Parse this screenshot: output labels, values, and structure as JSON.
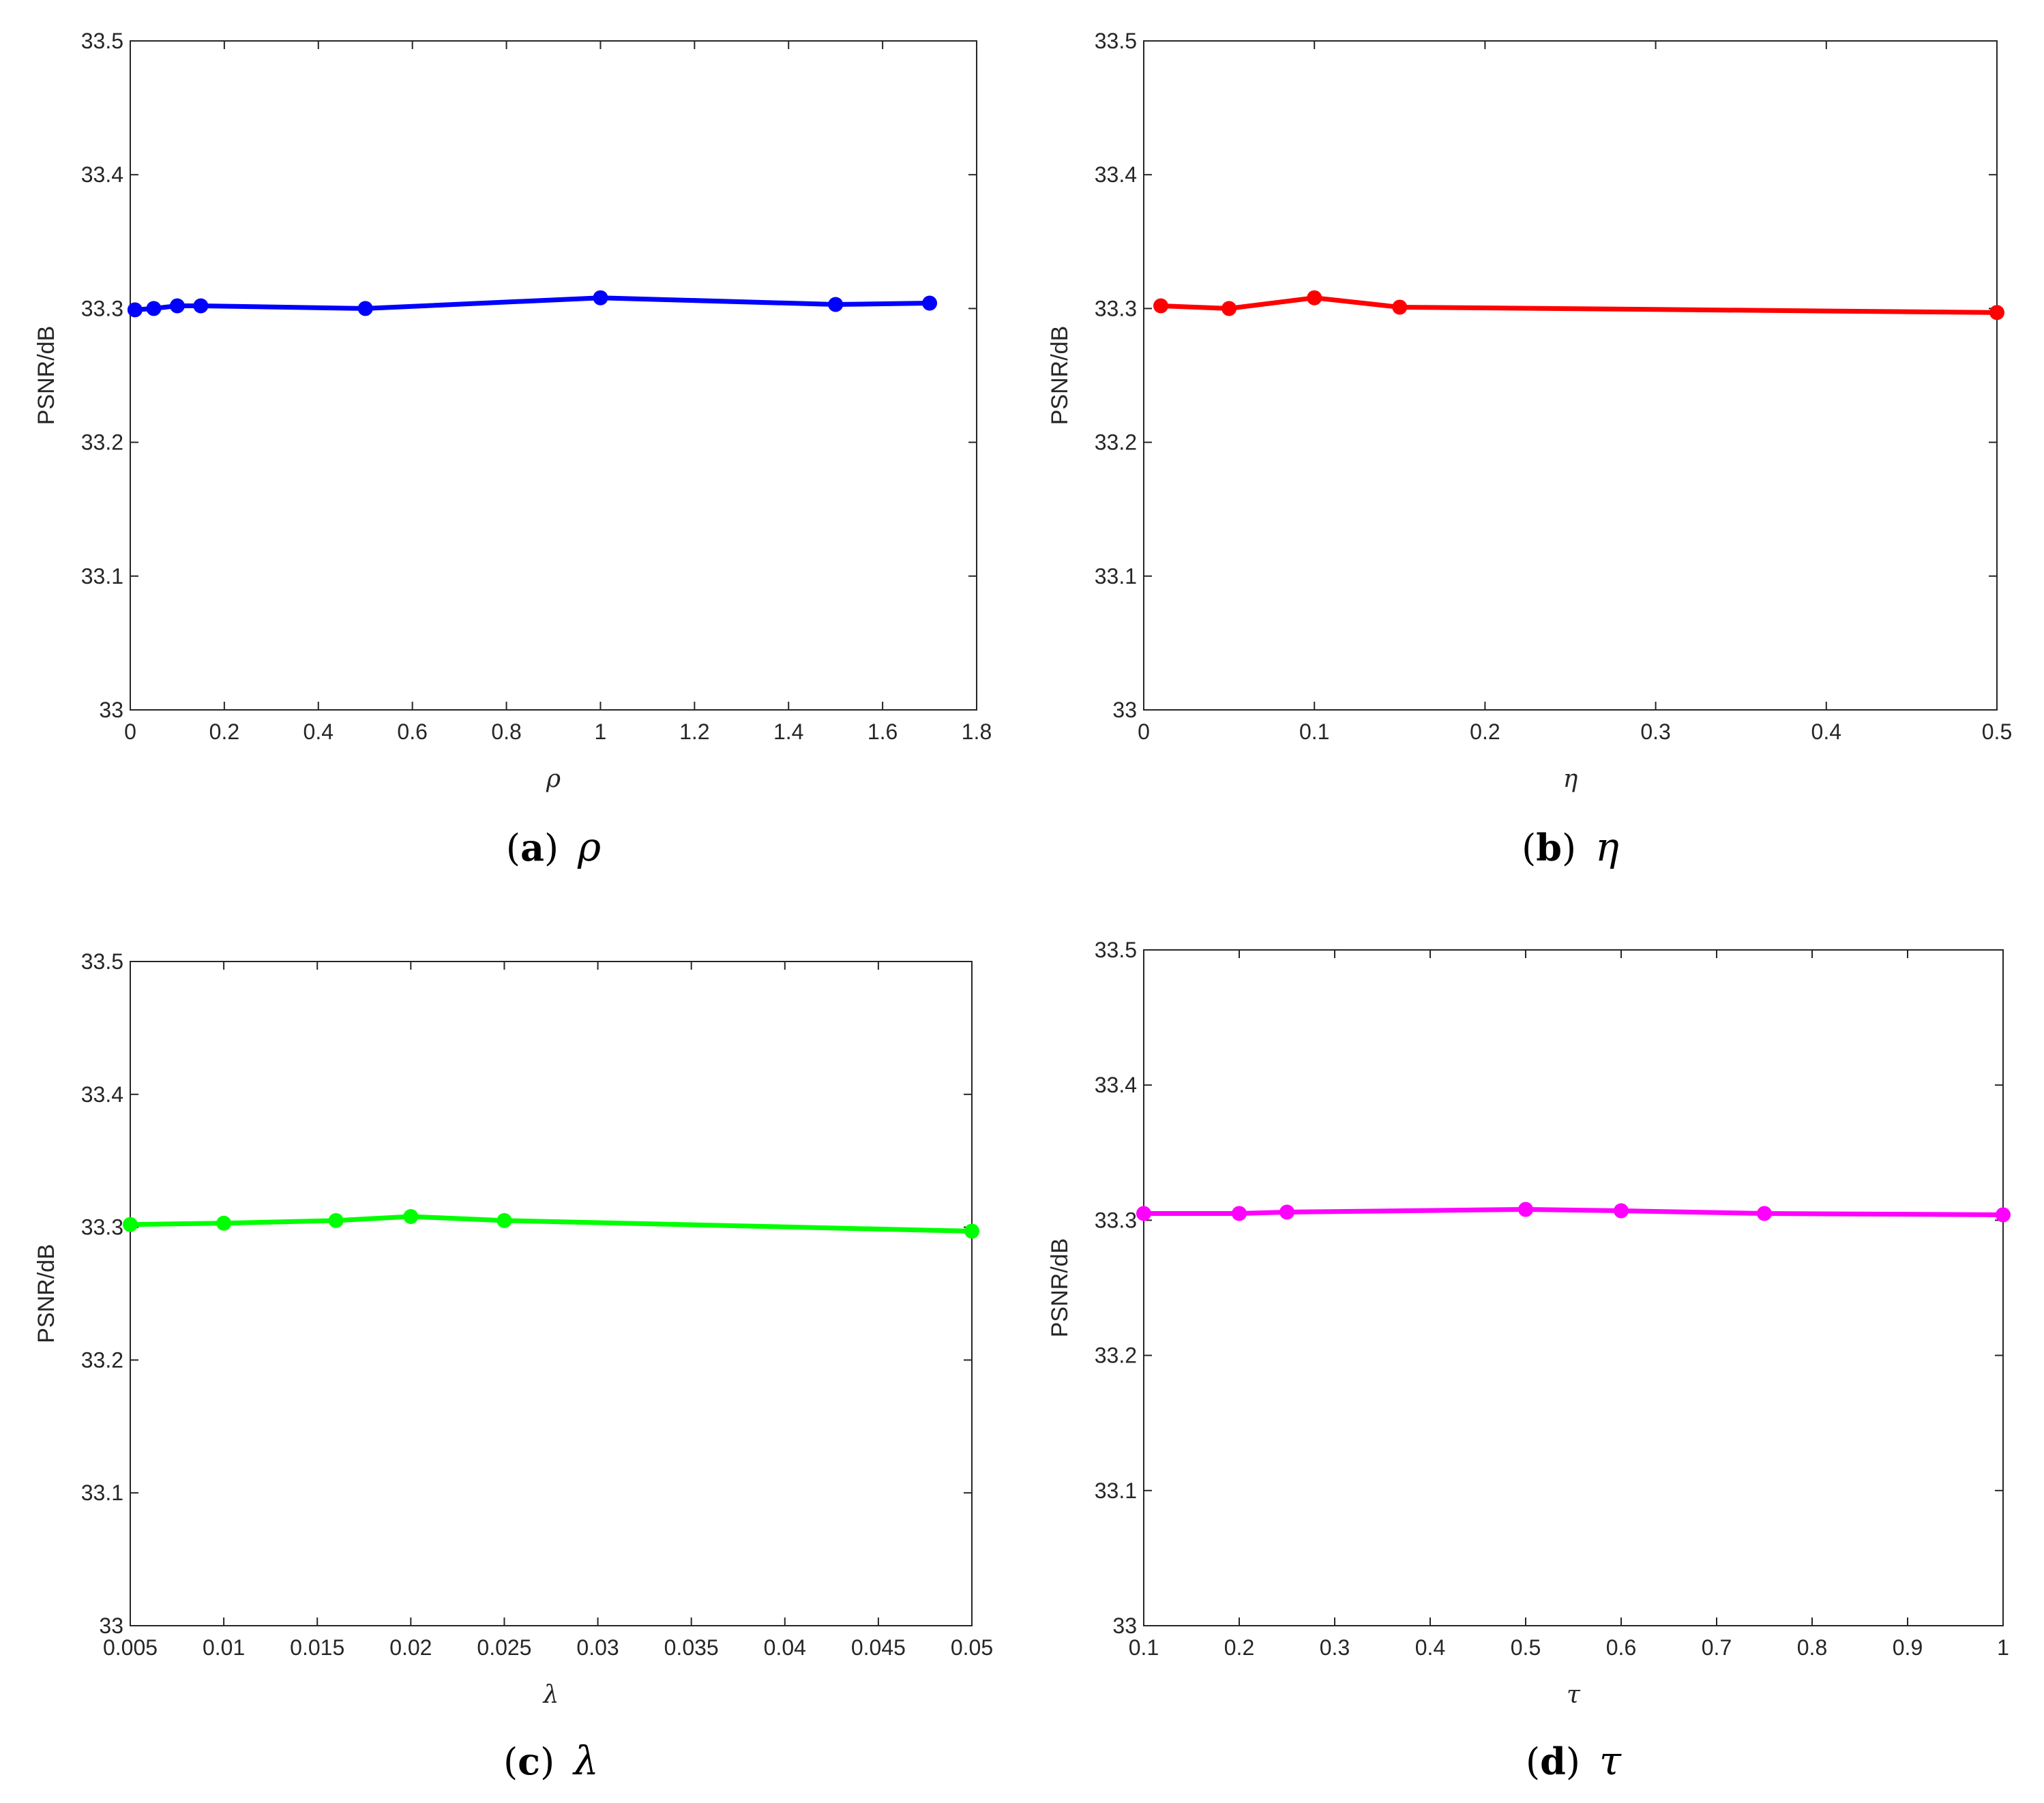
{
  "chart_data": [
    {
      "type": "line",
      "caption": {
        "letter": "a",
        "symbol": "ρ"
      },
      "xlabel": "ρ",
      "ylabel": "PSNR/dB",
      "color": "#0000ff",
      "xlim": [
        0,
        1.8
      ],
      "ylim": [
        33,
        33.5
      ],
      "xticks": [
        0,
        0.2,
        0.4,
        0.6,
        0.8,
        1,
        1.2,
        1.4,
        1.6,
        1.8
      ],
      "xtick_labels": [
        "0",
        "0.2",
        "0.4",
        "0.6",
        "0.8",
        "1",
        "1.2",
        "1.4",
        "1.6",
        "1.8"
      ],
      "yticks": [
        33,
        33.1,
        33.2,
        33.3,
        33.4,
        33.5
      ],
      "ytick_labels": [
        "33",
        "33.1",
        "33.2",
        "33.3",
        "33.4",
        "33.5"
      ],
      "x": [
        0.01,
        0.05,
        0.1,
        0.15,
        0.5,
        1,
        1.5,
        1.7
      ],
      "y": [
        33.299,
        33.3,
        33.302,
        33.302,
        33.3,
        33.308,
        33.303,
        33.304
      ]
    },
    {
      "type": "line",
      "caption": {
        "letter": "b",
        "symbol": "η"
      },
      "xlabel": "η",
      "ylabel": "PSNR/dB",
      "color": "#ff0000",
      "xlim": [
        0,
        0.5
      ],
      "ylim": [
        33,
        33.5
      ],
      "xticks": [
        0,
        0.1,
        0.2,
        0.3,
        0.4,
        0.5
      ],
      "xtick_labels": [
        "0",
        "0.1",
        "0.2",
        "0.3",
        "0.4",
        "0.5"
      ],
      "yticks": [
        33,
        33.1,
        33.2,
        33.3,
        33.4,
        33.5
      ],
      "ytick_labels": [
        "33",
        "33.1",
        "33.2",
        "33.3",
        "33.4",
        "33.5"
      ],
      "x": [
        0.01,
        0.05,
        0.1,
        0.15,
        0.5
      ],
      "y": [
        33.302,
        33.3,
        33.308,
        33.301,
        33.297
      ]
    },
    {
      "type": "line",
      "caption": {
        "letter": "c",
        "symbol": "λ"
      },
      "xlabel": "λ",
      "ylabel": "PSNR/dB",
      "color": "#00ff00",
      "xlim": [
        0.005,
        0.05
      ],
      "ylim": [
        33,
        33.5
      ],
      "xticks": [
        0.005,
        0.01,
        0.015,
        0.02,
        0.025,
        0.03,
        0.035,
        0.04,
        0.045,
        0.05
      ],
      "xtick_labels": [
        "0.005",
        "0.01",
        "0.015",
        "0.02",
        "0.025",
        "0.03",
        "0.035",
        "0.04",
        "0.045",
        "0.05"
      ],
      "yticks": [
        33,
        33.1,
        33.2,
        33.3,
        33.4,
        33.5
      ],
      "ytick_labels": [
        "33",
        "33.1",
        "33.2",
        "33.3",
        "33.4",
        "33.5"
      ],
      "x": [
        0.005,
        0.01,
        0.016,
        0.02,
        0.025,
        0.05
      ],
      "y": [
        33.302,
        33.303,
        33.305,
        33.308,
        33.305,
        33.297
      ]
    },
    {
      "type": "line",
      "caption": {
        "letter": "d",
        "symbol": "τ"
      },
      "xlabel": "τ",
      "ylabel": "PSNR/dB",
      "color": "#ff00ff",
      "xlim": [
        0.1,
        1
      ],
      "ylim": [
        33,
        33.5
      ],
      "xticks": [
        0.1,
        0.2,
        0.3,
        0.4,
        0.5,
        0.6,
        0.7,
        0.8,
        0.9,
        1
      ],
      "xtick_labels": [
        "0.1",
        "0.2",
        "0.3",
        "0.4",
        "0.5",
        "0.6",
        "0.7",
        "0.8",
        "0.9",
        "1"
      ],
      "yticks": [
        33,
        33.1,
        33.2,
        33.3,
        33.4,
        33.5
      ],
      "ytick_labels": [
        "33",
        "33.1",
        "33.2",
        "33.3",
        "33.4",
        "33.5"
      ],
      "x": [
        0.1,
        0.2,
        0.25,
        0.5,
        0.6,
        0.75,
        1
      ],
      "y": [
        33.305,
        33.305,
        33.306,
        33.308,
        33.307,
        33.305,
        33.304
      ]
    }
  ]
}
